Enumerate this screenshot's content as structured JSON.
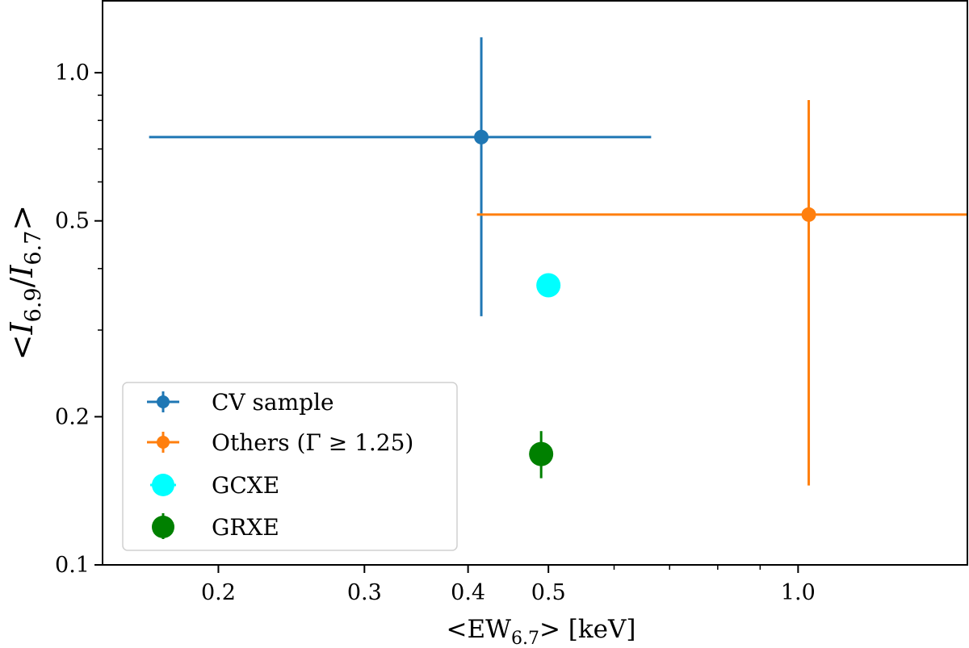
{
  "chart_data": {
    "type": "scatter",
    "xscale": "log",
    "yscale": "log",
    "xlim": [
      0.145,
      1.6
    ],
    "ylim": [
      0.1,
      1.4
    ],
    "xlabel": {
      "prefix": "<EW",
      "sub": "6.7",
      "suffix": "> [keV]"
    },
    "ylabel": {
      "open": "<",
      "i1": "I",
      "sub1": "6.9",
      "slash": "/",
      "i2": "I",
      "sub2": "6.7",
      "close": ">"
    },
    "xticks": [
      {
        "value": 0.2,
        "label": "0.2"
      },
      {
        "value": 0.3,
        "label": "0.3"
      },
      {
        "value": 0.4,
        "label": "0.4"
      },
      {
        "value": 0.5,
        "label": "0.5"
      },
      {
        "value": 1.0,
        "label": "1.0"
      }
    ],
    "xminor": [
      0.6,
      0.7,
      0.8,
      0.9
    ],
    "yticks": [
      {
        "value": 0.1,
        "label": "0.1"
      },
      {
        "value": 0.2,
        "label": "0.2"
      },
      {
        "value": 0.5,
        "label": "0.5"
      },
      {
        "value": 1.0,
        "label": "1.0"
      }
    ],
    "yminor": [
      0.3,
      0.4,
      0.6,
      0.7,
      0.8,
      0.9
    ],
    "series": [
      {
        "name": "CV sample",
        "color": "#1f77b4",
        "marker": "small",
        "x": 0.415,
        "y": 0.74,
        "xerr": [
          0.165,
          0.665
        ],
        "yerr": [
          0.32,
          1.18
        ]
      },
      {
        "name": "Others (Γ ≥ 1.25)",
        "color": "#ff7f0e",
        "marker": "small",
        "x": 1.03,
        "y": 0.515,
        "xerr": [
          0.41,
          1.6
        ],
        "yerr": [
          0.145,
          0.88
        ]
      },
      {
        "name": "GCXE",
        "color": "#00ffff",
        "marker": "large",
        "x": 0.5,
        "y": 0.37,
        "xerr": null,
        "yerr": null
      },
      {
        "name": "GRXE",
        "color": "#008000",
        "marker": "large",
        "x": 0.49,
        "y": 0.168,
        "xerr": null,
        "yerr": [
          0.15,
          0.187
        ]
      }
    ],
    "legend": {
      "location": "lower-left"
    }
  }
}
